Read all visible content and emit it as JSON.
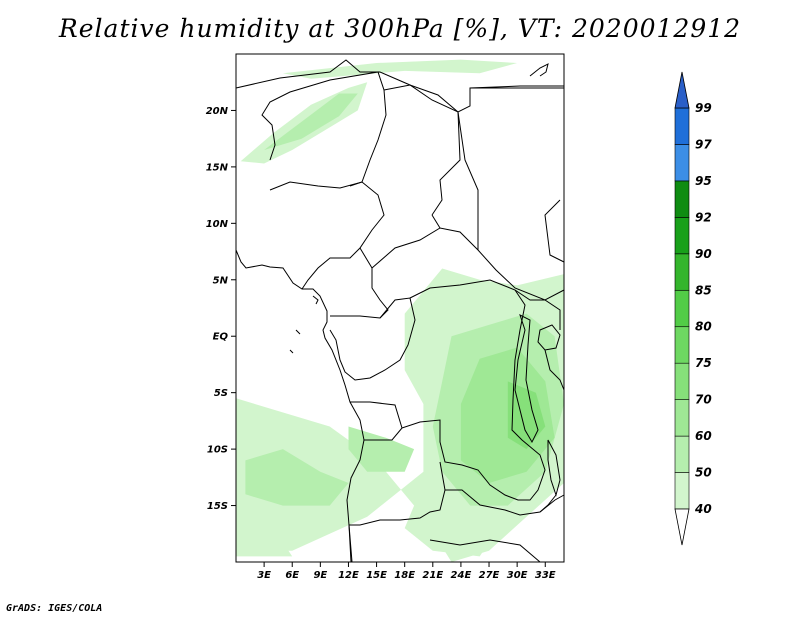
{
  "title": "Relative humidity at 300hPa [%], VT: 2020012912",
  "credit": "GrADS: IGES/COLA",
  "map": {
    "lon_range": [
      0,
      35
    ],
    "lat_range": [
      -20,
      25
    ],
    "lat_ticks": [
      {
        "value": 20,
        "label": "20N"
      },
      {
        "value": 15,
        "label": "15N"
      },
      {
        "value": 10,
        "label": "10N"
      },
      {
        "value": 5,
        "label": "5N"
      },
      {
        "value": 0,
        "label": "EQ"
      },
      {
        "value": -5,
        "label": "5S"
      },
      {
        "value": -10,
        "label": "10S"
      },
      {
        "value": -15,
        "label": "15S"
      }
    ],
    "lon_ticks": [
      {
        "value": 3,
        "label": "3E"
      },
      {
        "value": 6,
        "label": "6E"
      },
      {
        "value": 9,
        "label": "9E"
      },
      {
        "value": 12,
        "label": "12E"
      },
      {
        "value": 15,
        "label": "15E"
      },
      {
        "value": 18,
        "label": "18E"
      },
      {
        "value": 21,
        "label": "21E"
      },
      {
        "value": 24,
        "label": "24E"
      },
      {
        "value": 27,
        "label": "27E"
      },
      {
        "value": 30,
        "label": "30E"
      },
      {
        "value": 33,
        "label": "33E"
      }
    ]
  },
  "colorbar": {
    "levels": [
      {
        "label": "40",
        "color": "#e6fbe3"
      },
      {
        "label": "50",
        "color": "#d2f5cd"
      },
      {
        "label": "60",
        "color": "#b5eeae"
      },
      {
        "label": "70",
        "color": "#9fe895"
      },
      {
        "label": "75",
        "color": "#86e07a"
      },
      {
        "label": "80",
        "color": "#6ed862"
      },
      {
        "label": "85",
        "color": "#52cc47"
      },
      {
        "label": "90",
        "color": "#34b52c"
      },
      {
        "label": "92",
        "color": "#18a01a"
      },
      {
        "label": "95",
        "color": "#0f8c12"
      },
      {
        "label": "97",
        "color": "#3c8ee6"
      },
      {
        "label": "99",
        "color": "#1f6fd9"
      }
    ],
    "top_color": "#2a5fc8",
    "bottom_color": "#ffffff"
  },
  "humidity_zones": [
    {
      "level": 1,
      "points": [
        [
          0.5,
          15.5
        ],
        [
          4,
          18
        ],
        [
          8,
          20.5
        ],
        [
          12,
          22
        ],
        [
          14,
          22.5
        ],
        [
          13,
          20
        ],
        [
          10,
          18.5
        ],
        [
          6,
          16.5
        ],
        [
          3,
          15.3
        ]
      ]
    },
    {
      "level": 2,
      "points": [
        [
          3,
          16.5
        ],
        [
          7,
          19
        ],
        [
          11,
          21.5
        ],
        [
          13,
          21.5
        ],
        [
          11,
          19.5
        ],
        [
          7,
          17.5
        ]
      ]
    },
    {
      "level": 1,
      "points": [
        [
          5,
          23.3
        ],
        [
          15,
          24.2
        ],
        [
          24,
          24.5
        ],
        [
          30,
          24.2
        ],
        [
          26,
          23.3
        ],
        [
          18,
          23.5
        ],
        [
          8,
          22.8
        ]
      ]
    },
    {
      "level": 1,
      "points": [
        [
          22,
          6
        ],
        [
          26,
          5
        ],
        [
          30,
          4.5
        ],
        [
          35,
          5.5
        ],
        [
          35,
          -13
        ],
        [
          31,
          -16
        ],
        [
          27,
          -19
        ],
        [
          23,
          -20
        ],
        [
          20,
          -16
        ],
        [
          15,
          -11
        ],
        [
          10,
          -8
        ],
        [
          4,
          -6.5
        ],
        [
          0,
          -5.5
        ],
        [
          0,
          -19
        ],
        [
          6,
          -19
        ],
        [
          14,
          -16
        ],
        [
          20,
          -12
        ],
        [
          20,
          -6
        ],
        [
          18,
          -3
        ],
        [
          18,
          2
        ],
        [
          20,
          4
        ]
      ]
    },
    {
      "level": 2,
      "points": [
        [
          23,
          0
        ],
        [
          27,
          1
        ],
        [
          31,
          2
        ],
        [
          34,
          0
        ],
        [
          35,
          -6
        ],
        [
          33,
          -12
        ],
        [
          29,
          -15
        ],
        [
          25,
          -15
        ],
        [
          22,
          -12
        ],
        [
          21,
          -8
        ],
        [
          22,
          -4
        ]
      ]
    },
    {
      "level": 3,
      "points": [
        [
          26,
          -2
        ],
        [
          30,
          -1
        ],
        [
          33,
          -4
        ],
        [
          34,
          -9
        ],
        [
          31,
          -12
        ],
        [
          27,
          -13
        ],
        [
          24,
          -11
        ],
        [
          24,
          -6
        ]
      ]
    },
    {
      "level": 4,
      "points": [
        [
          29,
          -4
        ],
        [
          32,
          -5
        ],
        [
          33,
          -8
        ],
        [
          31,
          -10
        ],
        [
          29,
          -9
        ]
      ]
    },
    {
      "level": 2,
      "points": [
        [
          1,
          -11
        ],
        [
          5,
          -10
        ],
        [
          9,
          -12
        ],
        [
          12,
          -13
        ],
        [
          10,
          -15
        ],
        [
          5,
          -15
        ],
        [
          1,
          -14
        ]
      ]
    },
    {
      "level": 2,
      "points": [
        [
          12,
          -8
        ],
        [
          16,
          -9
        ],
        [
          19,
          -10
        ],
        [
          18,
          -12
        ],
        [
          14,
          -12
        ],
        [
          12,
          -10
        ]
      ]
    },
    {
      "level": 1,
      "points": [
        [
          19,
          -15
        ],
        [
          24,
          -15.5
        ],
        [
          28,
          -17
        ],
        [
          26,
          -19.5
        ],
        [
          21,
          -19
        ],
        [
          18,
          -17
        ]
      ]
    },
    {
      "level": 1,
      "points": [
        [
          0,
          -17
        ],
        [
          4,
          -17
        ],
        [
          6,
          -19.5
        ],
        [
          0,
          -19.5
        ]
      ]
    }
  ]
}
